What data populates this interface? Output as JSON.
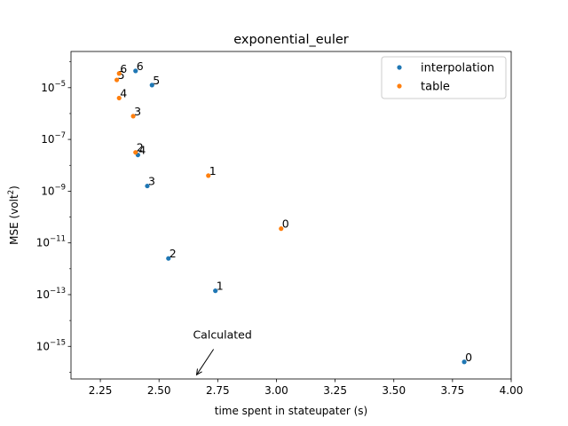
{
  "chart_data": {
    "type": "scatter",
    "title": "exponential_euler",
    "xlabel": "time spent in stateupater (s)",
    "ylabel_main": "MSE (volt",
    "ylabel_sup": "2",
    "ylabel_end": ")",
    "xlim": [
      2.125,
      4.0
    ],
    "ylim_exp": [
      -16.26,
      -3.6
    ],
    "yscale": "log",
    "xticks": [
      2.25,
      2.5,
      2.75,
      3.0,
      3.25,
      3.5,
      3.75,
      4.0
    ],
    "xtick_labels": [
      "2.25",
      "2.50",
      "2.75",
      "3.00",
      "3.25",
      "3.50",
      "3.75",
      "4.00"
    ],
    "yticks_exp": [
      -15,
      -13,
      -11,
      -9,
      -7,
      -5
    ],
    "ytick_base": "10",
    "ytick_exponents": [
      "−15",
      "−13",
      "−11",
      "−9",
      "−7",
      "−5"
    ],
    "legend_position": "upper right",
    "series": [
      {
        "name": "interpolation",
        "color": "#1f77b4",
        "points": [
          {
            "label": "0",
            "x": 3.8,
            "y_exp": -15.6
          },
          {
            "label": "1",
            "x": 2.74,
            "y_exp": -12.85
          },
          {
            "label": "2",
            "x": 2.54,
            "y_exp": -11.6
          },
          {
            "label": "3",
            "x": 2.45,
            "y_exp": -8.8
          },
          {
            "label": "4",
            "x": 2.41,
            "y_exp": -7.6
          },
          {
            "label": "5",
            "x": 2.47,
            "y_exp": -4.9
          },
          {
            "label": "6",
            "x": 2.4,
            "y_exp": -4.35
          }
        ]
      },
      {
        "name": "table",
        "color": "#ff7f0e",
        "points": [
          {
            "label": "0",
            "x": 3.02,
            "y_exp": -10.45
          },
          {
            "label": "1",
            "x": 2.71,
            "y_exp": -8.4
          },
          {
            "label": "2",
            "x": 2.4,
            "y_exp": -7.5
          },
          {
            "label": "3",
            "x": 2.39,
            "y_exp": -6.1
          },
          {
            "label": "4",
            "x": 2.33,
            "y_exp": -5.4
          },
          {
            "label": "5",
            "x": 2.32,
            "y_exp": -4.7
          },
          {
            "label": "6",
            "x": 2.33,
            "y_exp": -4.45
          }
        ]
      }
    ],
    "annotation": {
      "text": "Calculated",
      "target_x": 2.66,
      "target_y_exp": -16.1,
      "text_x": 2.77,
      "text_y_exp": -14.7
    }
  }
}
